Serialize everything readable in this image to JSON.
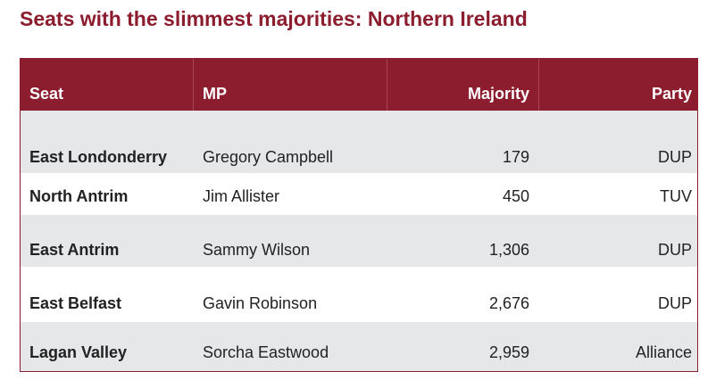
{
  "title": "Seats with the slimmest majorities: Northern Ireland",
  "table": {
    "header": [
      "Seat",
      "MP",
      "Majority",
      "Party"
    ],
    "rows": [
      [
        "East Londonderry",
        "Gregory Campbell",
        "179",
        "DUP"
      ],
      [
        "North Antrim",
        "Jim Allister",
        "450",
        "TUV"
      ],
      [
        "East Antrim",
        "Sammy Wilson",
        "1,306",
        "DUP"
      ],
      [
        "East Belfast",
        "Gavin Robinson",
        "2,676",
        "DUP"
      ],
      [
        "Lagan Valley",
        "Sorcha Eastwood",
        "2,959",
        "Alliance"
      ]
    ]
  }
}
